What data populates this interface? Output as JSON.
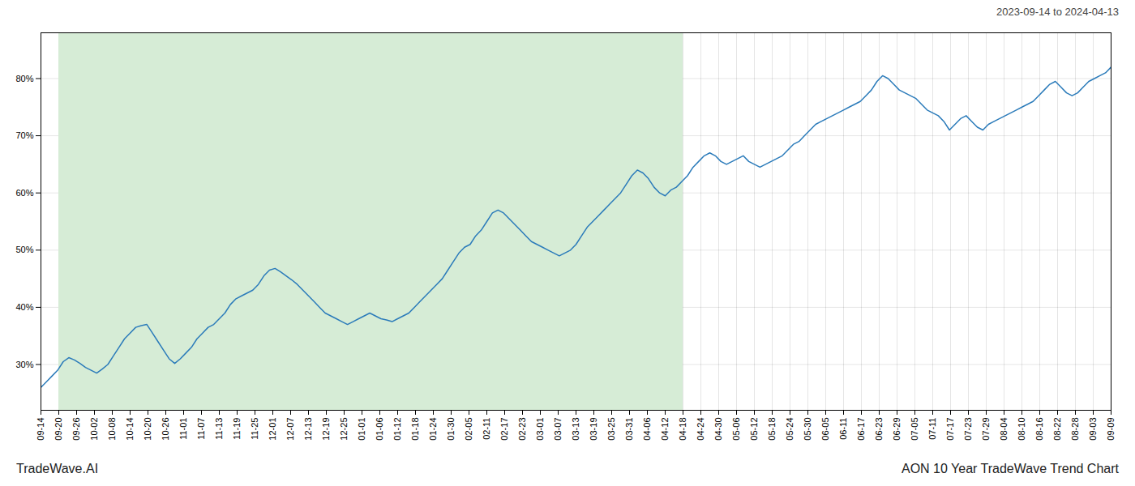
{
  "chart_data": {
    "type": "line",
    "title": "AON 10 Year TradeWave Trend Chart",
    "subtitle": "2023-09-14 to 2024-04-13",
    "annotations": [
      "TradeWave.AI"
    ],
    "color": "#2b7bba",
    "grid": true,
    "xlim": [
      0,
      60
    ],
    "xticks": [
      {
        "value": 0,
        "label": "09-14"
      },
      {
        "value": 1,
        "label": "09-20"
      },
      {
        "value": 2,
        "label": "09-26"
      },
      {
        "value": 3,
        "label": "10-02"
      },
      {
        "value": 4,
        "label": "10-08"
      },
      {
        "value": 5,
        "label": "10-14"
      },
      {
        "value": 6,
        "label": "10-20"
      },
      {
        "value": 7,
        "label": "10-26"
      },
      {
        "value": 8,
        "label": "11-01"
      },
      {
        "value": 9,
        "label": "11-07"
      },
      {
        "value": 10,
        "label": "11-13"
      },
      {
        "value": 11,
        "label": "11-19"
      },
      {
        "value": 12,
        "label": "11-25"
      },
      {
        "value": 13,
        "label": "12-01"
      },
      {
        "value": 14,
        "label": "12-07"
      },
      {
        "value": 15,
        "label": "12-13"
      },
      {
        "value": 16,
        "label": "12-19"
      },
      {
        "value": 17,
        "label": "12-25"
      },
      {
        "value": 18,
        "label": "01-01"
      },
      {
        "value": 19,
        "label": "01-06"
      },
      {
        "value": 20,
        "label": "01-12"
      },
      {
        "value": 21,
        "label": "01-18"
      },
      {
        "value": 22,
        "label": "01-24"
      },
      {
        "value": 23,
        "label": "01-30"
      },
      {
        "value": 24,
        "label": "02-05"
      },
      {
        "value": 25,
        "label": "02-11"
      },
      {
        "value": 26,
        "label": "02-17"
      },
      {
        "value": 27,
        "label": "02-23"
      },
      {
        "value": 28,
        "label": "03-01"
      },
      {
        "value": 29,
        "label": "03-07"
      },
      {
        "value": 30,
        "label": "03-13"
      },
      {
        "value": 31,
        "label": "03-19"
      },
      {
        "value": 32,
        "label": "03-25"
      },
      {
        "value": 33,
        "label": "03-31"
      },
      {
        "value": 34,
        "label": "04-06"
      },
      {
        "value": 35,
        "label": "04-12"
      },
      {
        "value": 36,
        "label": "04-18"
      },
      {
        "value": 37,
        "label": "04-24"
      },
      {
        "value": 38,
        "label": "04-30"
      },
      {
        "value": 39,
        "label": "05-06"
      },
      {
        "value": 40,
        "label": "05-12"
      },
      {
        "value": 41,
        "label": "05-18"
      },
      {
        "value": 42,
        "label": "05-24"
      },
      {
        "value": 43,
        "label": "05-30"
      },
      {
        "value": 44,
        "label": "06-05"
      },
      {
        "value": 45,
        "label": "06-11"
      },
      {
        "value": 46,
        "label": "06-17"
      },
      {
        "value": 47,
        "label": "06-23"
      },
      {
        "value": 48,
        "label": "06-29"
      },
      {
        "value": 49,
        "label": "07-05"
      },
      {
        "value": 50,
        "label": "07-11"
      },
      {
        "value": 51,
        "label": "07-17"
      },
      {
        "value": 52,
        "label": "07-23"
      },
      {
        "value": 53,
        "label": "07-29"
      },
      {
        "value": 54,
        "label": "08-04"
      },
      {
        "value": 55,
        "label": "08-10"
      },
      {
        "value": 56,
        "label": "08-16"
      },
      {
        "value": 57,
        "label": "08-22"
      },
      {
        "value": 58,
        "label": "08-28"
      },
      {
        "value": 59,
        "label": "09-03"
      },
      {
        "value": 60,
        "label": "09-09"
      }
    ],
    "ylim": [
      22,
      88
    ],
    "yticks": [
      {
        "value": 30,
        "label": "30%"
      },
      {
        "value": 40,
        "label": "40%"
      },
      {
        "value": 50,
        "label": "50%"
      },
      {
        "value": 60,
        "label": "60%"
      },
      {
        "value": 70,
        "label": "70%"
      },
      {
        "value": 80,
        "label": "80%"
      }
    ],
    "shaded_region": {
      "x": [
        1,
        36
      ],
      "color": "#d6ecd6"
    },
    "x": [
      0,
      0.3125,
      0.625,
      0.9375,
      1.25,
      1.5625,
      1.875,
      2.1875,
      2.5,
      2.8125,
      3.125,
      3.4375,
      3.75,
      4.0625,
      4.375,
      4.6875,
      5,
      5.3125,
      5.625,
      5.9375,
      6.25,
      6.5625,
      6.875,
      7.1875,
      7.5,
      7.8125,
      8.125,
      8.4375,
      8.75,
      9.0625,
      9.375,
      9.6875,
      10,
      10.3125,
      10.625,
      10.9375,
      11.25,
      11.5625,
      11.875,
      12.1875,
      12.5,
      12.8125,
      13.125,
      13.4375,
      13.75,
      14.0625,
      14.375,
      14.6875,
      15,
      15.3125,
      15.625,
      15.9375,
      16.25,
      16.5625,
      16.875,
      17.1875,
      17.5,
      17.8125,
      18.125,
      18.4375,
      18.75,
      19.0625,
      19.375,
      19.6875,
      20,
      20.3125,
      20.625,
      20.9375,
      21.25,
      21.5625,
      21.875,
      22.1875,
      22.5,
      22.8125,
      23.125,
      23.4375,
      23.75,
      24.0625,
      24.375,
      24.6875,
      25,
      25.3125,
      25.625,
      25.9375,
      26.25,
      26.5625,
      26.875,
      27.1875,
      27.5,
      27.8125,
      28.125,
      28.4375,
      28.75,
      29.0625,
      29.375,
      29.6875,
      30,
      30.3125,
      30.625,
      30.9375,
      31.25,
      31.5625,
      31.875,
      32.1875,
      32.5,
      32.8125,
      33.125,
      33.4375,
      33.75,
      34.0625,
      34.375,
      34.6875,
      35,
      35.3125,
      35.625,
      35.9375,
      36.25,
      36.5625,
      36.875,
      37.1875,
      37.5,
      37.8125,
      38.125,
      38.4375,
      38.75,
      39.0625,
      39.375,
      39.6875,
      40,
      40.3125,
      40.625,
      40.9375,
      41.25,
      41.5625,
      41.875,
      42.1875,
      42.5,
      42.8125,
      43.125,
      43.4375,
      43.75,
      44.0625,
      44.375,
      44.6875,
      45,
      45.3125,
      45.625,
      45.9375,
      46.25,
      46.5625,
      46.875,
      47.1875,
      47.5,
      47.8125,
      48.125,
      48.4375,
      48.75,
      49.0625,
      49.375,
      49.6875,
      50,
      50.3125,
      50.625,
      50.9375,
      51.25,
      51.5625,
      51.875,
      52.1875,
      52.5,
      52.8125,
      53.125,
      53.4375,
      53.75,
      54.0625,
      54.375,
      54.6875,
      55,
      55.3125,
      55.625,
      55.9375,
      56.25,
      56.5625,
      56.875,
      57.1875,
      57.5,
      57.8125,
      58.125,
      58.4375,
      58.75,
      59.0625,
      59.375,
      59.6875,
      60
    ],
    "values": [
      26.0,
      27.0,
      28.0,
      29.0,
      30.5,
      31.2,
      30.8,
      30.2,
      29.5,
      29.0,
      28.5,
      29.2,
      30.0,
      31.5,
      33.0,
      34.5,
      35.5,
      36.5,
      36.8,
      37.0,
      35.5,
      34.0,
      32.5,
      31.0,
      30.2,
      31.0,
      32.0,
      33.0,
      34.5,
      35.5,
      36.5,
      37.0,
      38.0,
      39.0,
      40.5,
      41.5,
      42.0,
      42.5,
      43.0,
      44.0,
      45.5,
      46.5,
      46.8,
      46.2,
      45.5,
      44.8,
      44.0,
      43.0,
      42.0,
      41.0,
      40.0,
      39.0,
      38.5,
      38.0,
      37.5,
      37.0,
      37.5,
      38.0,
      38.5,
      39.0,
      38.5,
      38.0,
      37.8,
      37.5,
      38.0,
      38.5,
      39.0,
      40.0,
      41.0,
      42.0,
      43.0,
      44.0,
      45.0,
      46.5,
      48.0,
      49.5,
      50.5,
      51.0,
      52.5,
      53.5,
      55.0,
      56.5,
      57.0,
      56.5,
      55.5,
      54.5,
      53.5,
      52.5,
      51.5,
      51.0,
      50.5,
      50.0,
      49.5,
      49.0,
      49.5,
      50.0,
      51.0,
      52.5,
      54.0,
      55.0,
      56.0,
      57.0,
      58.0,
      59.0,
      60.0,
      61.5,
      63.0,
      64.0,
      63.5,
      62.5,
      61.0,
      60.0,
      59.5,
      60.5,
      61.0,
      62.0,
      63.0,
      64.5,
      65.5,
      66.5,
      67.0,
      66.5,
      65.5,
      65.0,
      65.5,
      66.0,
      66.5,
      65.5,
      65.0,
      64.5,
      65.0,
      65.5,
      66.0,
      66.5,
      67.5,
      68.5,
      69.0,
      70.0,
      71.0,
      72.0,
      72.5,
      73.0,
      73.5,
      74.0,
      74.5,
      75.0,
      75.5,
      76.0,
      77.0,
      78.0,
      79.5,
      80.5,
      80.0,
      79.0,
      78.0,
      77.5,
      77.0,
      76.5,
      75.5,
      74.5,
      74.0,
      73.5,
      72.5,
      71.0,
      72.0,
      73.0,
      73.5,
      72.5,
      71.5,
      71.0,
      72.0,
      72.5,
      73.0,
      73.5,
      74.0,
      74.5,
      75.0,
      75.5,
      76.0,
      77.0,
      78.0,
      79.0,
      79.5,
      78.5,
      77.5,
      77.0,
      77.5,
      78.5,
      79.5,
      80.0,
      80.5,
      81.0,
      82.0
    ]
  }
}
